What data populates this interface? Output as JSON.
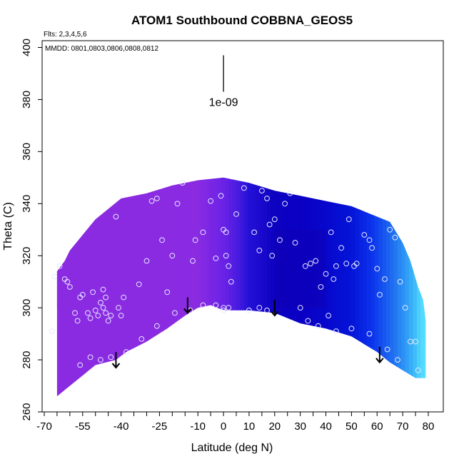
{
  "chart_data": {
    "type": "heatmap",
    "title": "ATOM1 Southbound COBBNA_GEOS5",
    "annotations": {
      "flights": "Flts: 2,3,4,5,6",
      "dates": "MMDD: 0801,0803,0806,0808,0812",
      "scale_label": "1e-09"
    },
    "xlabel": "Latitude (deg N)",
    "ylabel": "Theta (C)",
    "xlim": [
      -70,
      80
    ],
    "ylim": [
      260,
      400
    ],
    "x_ticks": [
      -70,
      -55,
      -40,
      -25,
      -10,
      0,
      10,
      20,
      30,
      40,
      50,
      60,
      70,
      80
    ],
    "x_tick_labels": [
      "-70",
      "-55",
      "-40",
      "-25",
      "-10",
      "0",
      "10",
      "20",
      "30",
      "40",
      "50",
      "60",
      "70",
      "80"
    ],
    "y_ticks": [
      260,
      280,
      300,
      320,
      340,
      360,
      380,
      400
    ],
    "y_tick_labels": [
      "260",
      "280",
      "300",
      "320",
      "340",
      "360",
      "380",
      "400"
    ],
    "scale_bar": {
      "x": 0,
      "y_from": 383,
      "y_to": 397
    },
    "field": {
      "upper_boundary": [
        [
          -65,
          314
        ],
        [
          -62,
          318
        ],
        [
          -60,
          322
        ],
        [
          -55,
          328
        ],
        [
          -50,
          334
        ],
        [
          -45,
          338
        ],
        [
          -40,
          342
        ],
        [
          -30,
          344
        ],
        [
          -20,
          347
        ],
        [
          -10,
          349
        ],
        [
          0,
          350
        ],
        [
          10,
          348
        ],
        [
          20,
          345
        ],
        [
          30,
          343
        ],
        [
          40,
          341
        ],
        [
          50,
          339
        ],
        [
          55,
          337
        ],
        [
          60,
          335
        ],
        [
          65,
          333
        ],
        [
          70,
          325
        ],
        [
          73,
          318
        ],
        [
          76,
          308
        ],
        [
          78,
          303
        ],
        [
          79,
          295
        ],
        [
          79,
          282
        ],
        [
          79,
          275
        ]
      ],
      "lower_boundary": [
        [
          -65,
          266
        ],
        [
          -60,
          270
        ],
        [
          -55,
          274
        ],
        [
          -50,
          278
        ],
        [
          -46,
          279
        ],
        [
          -42,
          280
        ],
        [
          -38,
          283
        ],
        [
          -30,
          287
        ],
        [
          -22,
          292
        ],
        [
          -15,
          297
        ],
        [
          -10,
          300
        ],
        [
          -5,
          301
        ],
        [
          0,
          299
        ],
        [
          10,
          299
        ],
        [
          20,
          298
        ],
        [
          30,
          294
        ],
        [
          40,
          292
        ],
        [
          50,
          289
        ],
        [
          55,
          286
        ],
        [
          60,
          283
        ],
        [
          65,
          279
        ],
        [
          70,
          276
        ],
        [
          75,
          273
        ],
        [
          79,
          273
        ]
      ],
      "color_by_latitude": [
        [
          -70,
          "#8a2be2"
        ],
        [
          -10,
          "#8a2be2"
        ],
        [
          0,
          "#6a22e6"
        ],
        [
          5,
          "#4d1ce0"
        ],
        [
          10,
          "#2410d8"
        ],
        [
          20,
          "#0d02c0"
        ],
        [
          30,
          "#0a00c4"
        ],
        [
          40,
          "#0708cc"
        ],
        [
          50,
          "#0514d8"
        ],
        [
          58,
          "#0b33ec"
        ],
        [
          65,
          "#1d66f0"
        ],
        [
          70,
          "#2b8ff5"
        ],
        [
          74,
          "#3ab4f8"
        ],
        [
          77,
          "#4fd6ff"
        ],
        [
          79,
          "#5ae0ff"
        ]
      ],
      "local_anomalies": [
        {
          "lat_range": [
            -70,
            -60
          ],
          "theta_range": [
            300,
            330
          ],
          "color": "#8a2be2"
        },
        {
          "lat_range": [
            20,
            40
          ],
          "theta_range": [
            300,
            330
          ],
          "color": "#1000b4"
        }
      ]
    },
    "sample_points": [
      [
        -67,
        291
      ],
      [
        -66,
        312
      ],
      [
        -64,
        316
      ],
      [
        -62,
        311
      ],
      [
        -61,
        310
      ],
      [
        -60,
        308
      ],
      [
        -58,
        298
      ],
      [
        -57,
        295
      ],
      [
        -56,
        304
      ],
      [
        -55,
        305
      ],
      [
        -53,
        298
      ],
      [
        -52,
        296
      ],
      [
        -51,
        306
      ],
      [
        -50,
        299
      ],
      [
        -49,
        297
      ],
      [
        -48,
        302
      ],
      [
        -47,
        307
      ],
      [
        -47,
        300
      ],
      [
        -46,
        304
      ],
      [
        -46,
        298
      ],
      [
        -45,
        295
      ],
      [
        -44,
        297
      ],
      [
        -42,
        335
      ],
      [
        -41,
        300
      ],
      [
        -40,
        297
      ],
      [
        -39,
        304
      ],
      [
        -33,
        309
      ],
      [
        -30,
        318
      ],
      [
        -28,
        341
      ],
      [
        -26,
        342
      ],
      [
        -24,
        326
      ],
      [
        -22,
        306
      ],
      [
        -20,
        320
      ],
      [
        -18,
        340
      ],
      [
        -16,
        348
      ],
      [
        -12,
        318
      ],
      [
        -11,
        326
      ],
      [
        -8,
        329
      ],
      [
        -5,
        341
      ],
      [
        -3,
        319
      ],
      [
        -1,
        343
      ],
      [
        0,
        330
      ],
      [
        1,
        329
      ],
      [
        1,
        320
      ],
      [
        2,
        316
      ],
      [
        3,
        310
      ],
      [
        -3,
        301
      ],
      [
        -8,
        301
      ],
      [
        0,
        300
      ],
      [
        0,
        299
      ],
      [
        2,
        300
      ],
      [
        5,
        336
      ],
      [
        8,
        346
      ],
      [
        12,
        329
      ],
      [
        14,
        322
      ],
      [
        15,
        345
      ],
      [
        17,
        342
      ],
      [
        18,
        332
      ],
      [
        19,
        320
      ],
      [
        20,
        334
      ],
      [
        22,
        326
      ],
      [
        24,
        340
      ],
      [
        26,
        344
      ],
      [
        28,
        325
      ],
      [
        30,
        300
      ],
      [
        32,
        316
      ],
      [
        34,
        317
      ],
      [
        36,
        318
      ],
      [
        38,
        308
      ],
      [
        40,
        313
      ],
      [
        41,
        297
      ],
      [
        42,
        329
      ],
      [
        43,
        311
      ],
      [
        44,
        316
      ],
      [
        46,
        323
      ],
      [
        48,
        317
      ],
      [
        49,
        334
      ],
      [
        51,
        316
      ],
      [
        52,
        317
      ],
      [
        55,
        328
      ],
      [
        57,
        326
      ],
      [
        58,
        323
      ],
      [
        60,
        315
      ],
      [
        61,
        305
      ],
      [
        63,
        311
      ],
      [
        65,
        330
      ],
      [
        67,
        327
      ],
      [
        69,
        310
      ],
      [
        71,
        300
      ],
      [
        73,
        287
      ],
      [
        75,
        287
      ],
      [
        76,
        276
      ],
      [
        -56,
        278
      ],
      [
        -52,
        281
      ],
      [
        -48,
        280
      ],
      [
        -44,
        281
      ],
      [
        -38,
        283
      ],
      [
        -32,
        288
      ],
      [
        -26,
        293
      ],
      [
        -19,
        298
      ],
      [
        -13,
        299
      ],
      [
        10,
        299
      ],
      [
        14,
        300
      ],
      [
        17,
        299
      ],
      [
        33,
        295
      ],
      [
        37,
        293
      ],
      [
        44,
        291
      ],
      [
        50,
        292
      ],
      [
        57,
        290
      ],
      [
        64,
        284
      ],
      [
        68,
        280
      ]
    ],
    "arrows": [
      {
        "lat": -42,
        "theta_from": 283,
        "theta_to": 277
      },
      {
        "lat": -14,
        "theta_from": 304,
        "theta_to": 298
      },
      {
        "lat": 20,
        "theta_from": 303,
        "theta_to": 297
      },
      {
        "lat": 61,
        "theta_from": 285,
        "theta_to": 279
      }
    ],
    "grid": false,
    "legend": "none"
  }
}
